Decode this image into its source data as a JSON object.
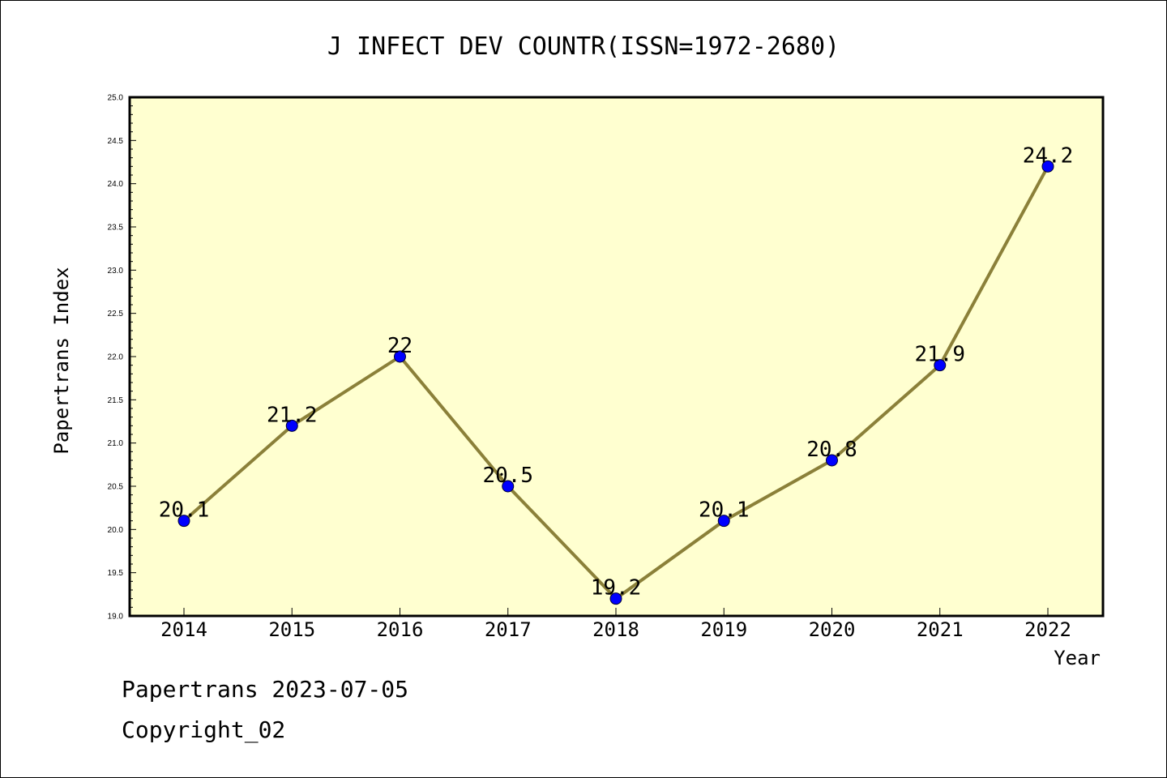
{
  "chart_data": {
    "type": "line",
    "title": "J INFECT DEV COUNTR(ISSN=1972-2680)",
    "xlabel": "Year",
    "ylabel": "Papertrans Index",
    "categories": [
      "2014",
      "2015",
      "2016",
      "2017",
      "2018",
      "2019",
      "2020",
      "2021",
      "2022"
    ],
    "values": [
      20.1,
      21.2,
      22.0,
      20.5,
      19.2,
      20.1,
      20.8,
      21.9,
      24.2
    ],
    "data_labels": [
      "20.1",
      "21.2",
      "22",
      "20.5",
      "19.2",
      "20.1",
      "20.8",
      "21.9",
      "24.2"
    ],
    "ylim": [
      19.0,
      25.0
    ],
    "yticks": [
      "19.0",
      "19.5",
      "20.0",
      "20.5",
      "21.0",
      "21.5",
      "22.0",
      "22.5",
      "23.0",
      "23.5",
      "24.0",
      "24.5",
      "25.0"
    ],
    "grid": false,
    "colors": {
      "plot_background": "#ffffd0",
      "line": "#8b8039",
      "marker": "#0000ff"
    }
  },
  "footer": {
    "line1": "Papertrans 2023-07-05",
    "line2": "Copyright_02"
  }
}
